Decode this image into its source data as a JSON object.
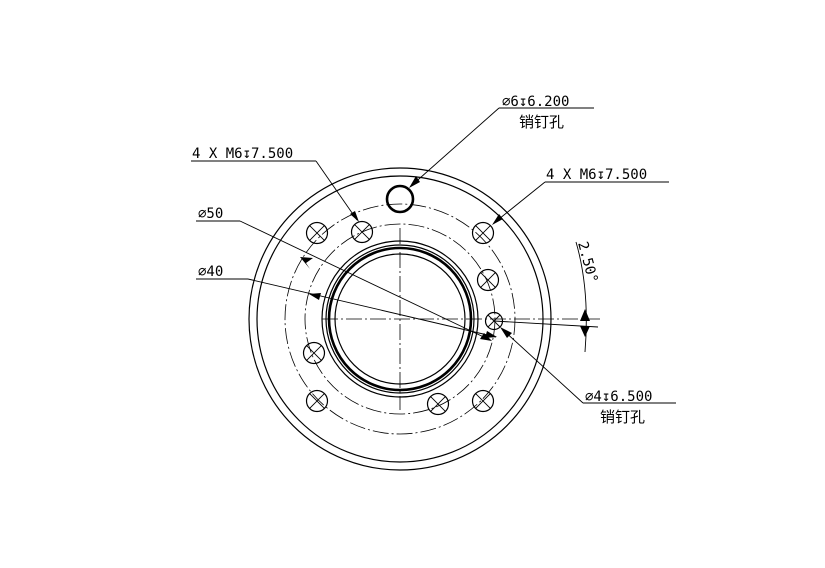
{
  "callouts": {
    "pin_hole_top": {
      "size": "∅6↧6.200",
      "note": "销钉孔"
    },
    "thread_left": {
      "size": "4 X M6↧7.500"
    },
    "thread_right": {
      "size": "4 X M6↧7.500"
    },
    "dia_50": {
      "size": "∅50"
    },
    "dia_40": {
      "size": "∅40"
    },
    "angle": {
      "size": "2.50°"
    },
    "pin_hole_small": {
      "size": "∅4↧6.500",
      "note": "销钉孔"
    }
  }
}
